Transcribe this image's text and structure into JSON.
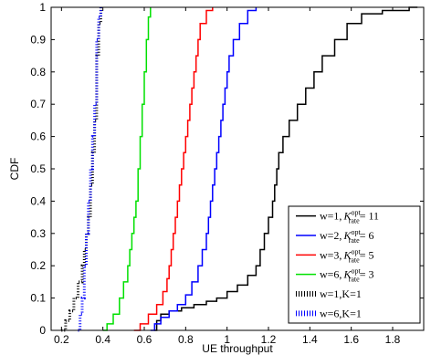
{
  "chart_data": {
    "type": "line",
    "title": "",
    "xlabel": "UE throughput",
    "ylabel": "CDF",
    "xlim": [
      0.15,
      1.95
    ],
    "ylim": [
      0,
      1
    ],
    "xticks": [
      0.2,
      0.4,
      0.6,
      0.8,
      1,
      1.2,
      1.4,
      1.6,
      1.8
    ],
    "xtick_labels": [
      "0.2",
      "0.4",
      "0.6",
      "0.8",
      "1",
      "1.2",
      "1.4",
      "1.6",
      "1.8"
    ],
    "yticks": [
      0,
      0.1,
      0.2,
      0.3,
      0.4,
      0.5,
      0.6,
      0.7,
      0.8,
      0.9,
      1
    ],
    "ytick_labels": [
      "0",
      "0.1",
      "0.2",
      "0.3",
      "0.4",
      "0.5",
      "0.6",
      "0.7",
      "0.8",
      "0.9",
      "1"
    ],
    "grid": false,
    "legend_position": "bottom-right",
    "series": [
      {
        "name_parts": [
          "w=1,",
          "K",
          "opt",
          "rate",
          "= 11"
        ],
        "color": "#000000",
        "dash": "solid",
        "points": [
          [
            0.65,
            0
          ],
          [
            0.66,
            0.03
          ],
          [
            0.68,
            0.05
          ],
          [
            0.72,
            0.06
          ],
          [
            0.78,
            0.07
          ],
          [
            0.84,
            0.08
          ],
          [
            0.9,
            0.09
          ],
          [
            0.95,
            0.1
          ],
          [
            1.0,
            0.12
          ],
          [
            1.05,
            0.14
          ],
          [
            1.1,
            0.17
          ],
          [
            1.14,
            0.2
          ],
          [
            1.16,
            0.25
          ],
          [
            1.18,
            0.3
          ],
          [
            1.2,
            0.35
          ],
          [
            1.22,
            0.4
          ],
          [
            1.23,
            0.45
          ],
          [
            1.24,
            0.5
          ],
          [
            1.25,
            0.55
          ],
          [
            1.27,
            0.6
          ],
          [
            1.3,
            0.65
          ],
          [
            1.34,
            0.7
          ],
          [
            1.38,
            0.75
          ],
          [
            1.42,
            0.8
          ],
          [
            1.46,
            0.85
          ],
          [
            1.52,
            0.9
          ],
          [
            1.58,
            0.95
          ],
          [
            1.65,
            0.98
          ],
          [
            1.75,
            0.99
          ],
          [
            1.88,
            1.0
          ],
          [
            1.92,
            1.0
          ]
        ]
      },
      {
        "name_parts": [
          "w=2,",
          "K",
          "opt",
          "rate",
          "= 6"
        ],
        "color": "#0000ff",
        "dash": "solid",
        "points": [
          [
            0.63,
            0
          ],
          [
            0.65,
            0.02
          ],
          [
            0.68,
            0.04
          ],
          [
            0.72,
            0.06
          ],
          [
            0.76,
            0.08
          ],
          [
            0.8,
            0.11
          ],
          [
            0.83,
            0.15
          ],
          [
            0.86,
            0.2
          ],
          [
            0.88,
            0.25
          ],
          [
            0.9,
            0.3
          ],
          [
            0.91,
            0.35
          ],
          [
            0.92,
            0.4
          ],
          [
            0.93,
            0.45
          ],
          [
            0.94,
            0.5
          ],
          [
            0.95,
            0.55
          ],
          [
            0.96,
            0.6
          ],
          [
            0.97,
            0.65
          ],
          [
            0.98,
            0.7
          ],
          [
            0.99,
            0.75
          ],
          [
            1.0,
            0.8
          ],
          [
            1.01,
            0.85
          ],
          [
            1.03,
            0.9
          ],
          [
            1.06,
            0.95
          ],
          [
            1.1,
            0.99
          ],
          [
            1.14,
            1.0
          ]
        ]
      },
      {
        "name_parts": [
          "w=3,",
          "K",
          "opt",
          "rate",
          "= 5"
        ],
        "color": "#ff0000",
        "dash": "solid",
        "points": [
          [
            0.55,
            0
          ],
          [
            0.58,
            0.02
          ],
          [
            0.62,
            0.05
          ],
          [
            0.66,
            0.08
          ],
          [
            0.69,
            0.12
          ],
          [
            0.71,
            0.16
          ],
          [
            0.72,
            0.2
          ],
          [
            0.73,
            0.25
          ],
          [
            0.74,
            0.3
          ],
          [
            0.75,
            0.35
          ],
          [
            0.76,
            0.4
          ],
          [
            0.77,
            0.45
          ],
          [
            0.78,
            0.5
          ],
          [
            0.79,
            0.55
          ],
          [
            0.8,
            0.6
          ],
          [
            0.81,
            0.65
          ],
          [
            0.82,
            0.7
          ],
          [
            0.83,
            0.75
          ],
          [
            0.84,
            0.8
          ],
          [
            0.85,
            0.85
          ],
          [
            0.86,
            0.9
          ],
          [
            0.87,
            0.95
          ],
          [
            0.9,
            0.99
          ],
          [
            0.93,
            1.0
          ]
        ]
      },
      {
        "name_parts": [
          "w=6,",
          "K",
          "opt",
          "rate",
          "= 3"
        ],
        "color": "#00e000",
        "dash": "solid",
        "points": [
          [
            0.4,
            0
          ],
          [
            0.42,
            0.02
          ],
          [
            0.45,
            0.05
          ],
          [
            0.48,
            0.1
          ],
          [
            0.5,
            0.15
          ],
          [
            0.52,
            0.2
          ],
          [
            0.53,
            0.25
          ],
          [
            0.54,
            0.3
          ],
          [
            0.55,
            0.35
          ],
          [
            0.56,
            0.4
          ],
          [
            0.57,
            0.5
          ],
          [
            0.58,
            0.6
          ],
          [
            0.59,
            0.7
          ],
          [
            0.6,
            0.8
          ],
          [
            0.61,
            0.9
          ],
          [
            0.62,
            0.97
          ],
          [
            0.63,
            1.0
          ]
        ]
      },
      {
        "name_parts": [
          "w=1,K=1"
        ],
        "color": "#000000",
        "dash": "dotted",
        "points": [
          [
            0.2,
            0
          ],
          [
            0.22,
            0.03
          ],
          [
            0.24,
            0.06
          ],
          [
            0.26,
            0.1
          ],
          [
            0.28,
            0.15
          ],
          [
            0.3,
            0.2
          ],
          [
            0.31,
            0.25
          ],
          [
            0.32,
            0.3
          ],
          [
            0.33,
            0.35
          ],
          [
            0.34,
            0.45
          ],
          [
            0.35,
            0.55
          ],
          [
            0.36,
            0.65
          ],
          [
            0.37,
            0.75
          ],
          [
            0.37,
            0.85
          ],
          [
            0.38,
            0.95
          ],
          [
            0.39,
            1.0
          ]
        ]
      },
      {
        "name_parts": [
          "w=6,K=1"
        ],
        "color": "#0000ff",
        "dash": "dotted",
        "points": [
          [
            0.28,
            0
          ],
          [
            0.29,
            0.05
          ],
          [
            0.3,
            0.1
          ],
          [
            0.31,
            0.2
          ],
          [
            0.32,
            0.3
          ],
          [
            0.33,
            0.4
          ],
          [
            0.34,
            0.5
          ],
          [
            0.35,
            0.6
          ],
          [
            0.36,
            0.7
          ],
          [
            0.37,
            0.8
          ],
          [
            0.37,
            0.9
          ],
          [
            0.38,
            0.97
          ],
          [
            0.39,
            1.0
          ]
        ]
      }
    ]
  }
}
